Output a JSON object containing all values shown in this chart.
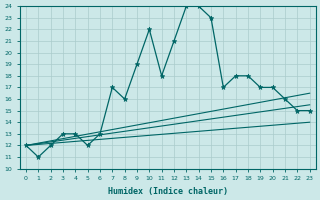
{
  "xlabel": "Humidex (Indice chaleur)",
  "ylabel": "",
  "bg_color": "#cce8e8",
  "grid_color": "#aacccc",
  "line_color": "#006666",
  "xmin": 0,
  "xmax": 23,
  "ymin": 10,
  "ymax": 24,
  "x_ticks": [
    0,
    1,
    2,
    3,
    4,
    5,
    6,
    7,
    8,
    9,
    10,
    11,
    12,
    13,
    14,
    15,
    16,
    17,
    18,
    19,
    20,
    21,
    22,
    23
  ],
  "y_ticks": [
    10,
    11,
    12,
    13,
    14,
    15,
    16,
    17,
    18,
    19,
    20,
    21,
    22,
    23,
    24
  ],
  "series1_x": [
    0,
    1,
    2,
    3,
    4,
    5,
    6,
    7,
    8,
    9,
    10,
    11,
    12,
    13,
    14,
    15,
    16,
    17,
    18,
    19,
    20,
    21,
    22,
    23
  ],
  "series1_y": [
    12,
    11,
    12,
    13,
    13,
    12,
    13,
    17,
    16,
    19,
    22,
    18,
    21,
    24,
    24,
    23,
    17,
    18,
    18,
    17,
    17,
    16,
    15,
    15
  ],
  "trend1_start": 12.0,
  "trend1_end": 14.0,
  "trend2_start": 12.0,
  "trend2_end": 15.5,
  "trend3_start": 12.0,
  "trend3_end": 16.5
}
